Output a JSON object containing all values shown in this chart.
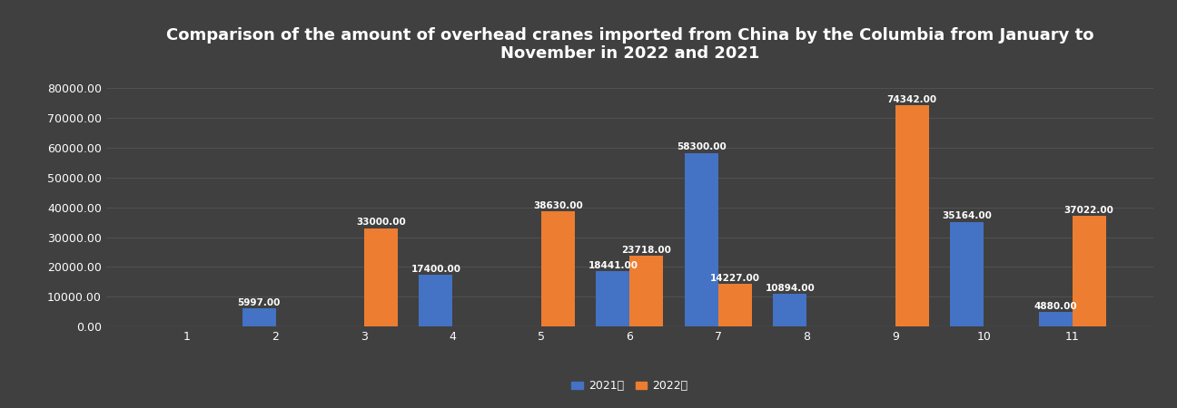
{
  "title": "Comparison of the amount of overhead cranes imported from China by the Columbia from January to\nNovember in 2022 and 2021",
  "months": [
    1,
    2,
    3,
    4,
    5,
    6,
    7,
    8,
    9,
    10,
    11
  ],
  "values_2021": [
    0,
    5997.0,
    0,
    17400.0,
    0,
    18441.0,
    58300.0,
    10894.0,
    0,
    35164.0,
    4880.0
  ],
  "values_2022": [
    0,
    0,
    33000.0,
    0,
    38630.0,
    23718.0,
    14227.0,
    0,
    74342.0,
    0,
    37022.0
  ],
  "color_2021": "#4472C4",
  "color_2022": "#ED7D31",
  "background_color": "#404040",
  "grid_color": "#555555",
  "text_color": "white",
  "ylim": [
    0,
    85000
  ],
  "yticks": [
    0,
    10000,
    20000,
    30000,
    40000,
    50000,
    60000,
    70000,
    80000
  ],
  "ytick_labels": [
    "0.00",
    "10000.00",
    "20000.00",
    "30000.00",
    "40000.00",
    "50000.00",
    "60000.00",
    "70000.00",
    "80000.00"
  ],
  "legend_2021": "2021年",
  "legend_2022": "2022年",
  "bar_width": 0.38,
  "title_fontsize": 13,
  "label_fontsize": 7.5,
  "tick_fontsize": 9
}
